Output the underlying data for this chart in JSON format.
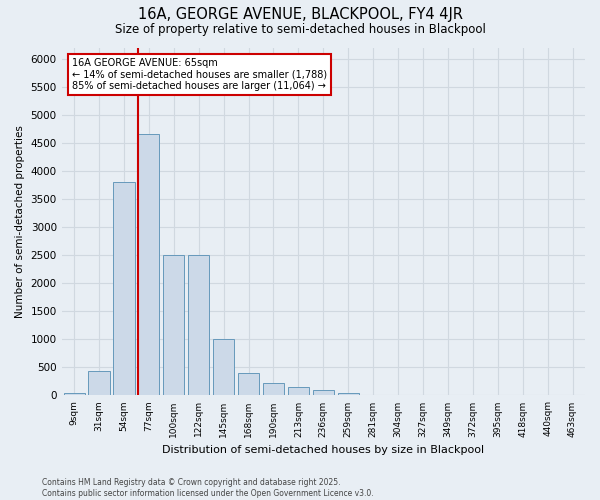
{
  "title1": "16A, GEORGE AVENUE, BLACKPOOL, FY4 4JR",
  "title2": "Size of property relative to semi-detached houses in Blackpool",
  "xlabel": "Distribution of semi-detached houses by size in Blackpool",
  "ylabel": "Number of semi-detached properties",
  "footnote": "Contains HM Land Registry data © Crown copyright and database right 2025.\nContains public sector information licensed under the Open Government Licence v3.0.",
  "annotation_title": "16A GEORGE AVENUE: 65sqm",
  "annotation_line1": "← 14% of semi-detached houses are smaller (1,788)",
  "annotation_line2": "85% of semi-detached houses are larger (11,064) →",
  "bar_color": "#ccd9e8",
  "bar_edge_color": "#6699bb",
  "redline_color": "#cc0000",
  "annotation_box_edgecolor": "#cc0000",
  "grid_color": "#d0d8e0",
  "background_color": "#e8eef4",
  "categories": [
    "9sqm",
    "31sqm",
    "54sqm",
    "77sqm",
    "100sqm",
    "122sqm",
    "145sqm",
    "168sqm",
    "190sqm",
    "213sqm",
    "236sqm",
    "259sqm",
    "281sqm",
    "304sqm",
    "327sqm",
    "349sqm",
    "372sqm",
    "395sqm",
    "418sqm",
    "440sqm",
    "463sqm"
  ],
  "values": [
    40,
    440,
    3800,
    4650,
    2500,
    2500,
    1000,
    400,
    225,
    150,
    100,
    50,
    10,
    5,
    5,
    5,
    5,
    5,
    5,
    5,
    5
  ],
  "ylim": [
    0,
    6200
  ],
  "yticks": [
    0,
    500,
    1000,
    1500,
    2000,
    2500,
    3000,
    3500,
    4000,
    4500,
    5000,
    5500,
    6000
  ],
  "redline_bin_index": 3
}
